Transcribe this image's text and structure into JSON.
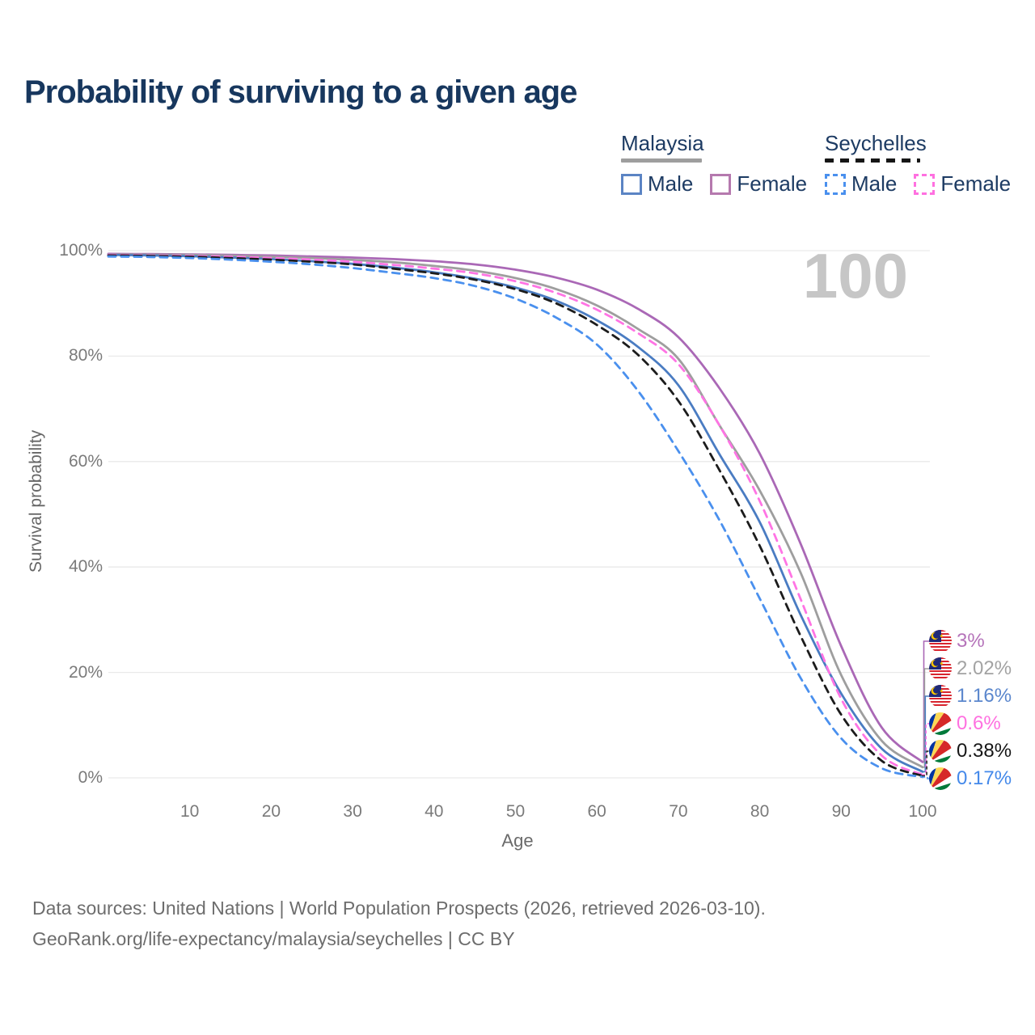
{
  "chart_data": {
    "type": "line",
    "title": "Probability of surviving to a given age",
    "xlabel": "Age",
    "ylabel": "Survival probability",
    "watermark": "100",
    "xlim": [
      0,
      100
    ],
    "ylim": [
      0,
      100
    ],
    "grid": "horizontal",
    "legend_position": "top-right",
    "x_ticks": [
      10,
      20,
      30,
      40,
      50,
      60,
      70,
      80,
      90,
      100
    ],
    "y_ticks": [
      0,
      20,
      40,
      60,
      80,
      100
    ],
    "y_tick_suffix": "%",
    "x": [
      0,
      5,
      10,
      15,
      20,
      25,
      30,
      35,
      40,
      45,
      50,
      55,
      60,
      65,
      70,
      75,
      80,
      85,
      90,
      95,
      100
    ],
    "series": [
      {
        "name": "Malaysia Female",
        "country": "Malaysia",
        "sex": "Female",
        "flag": "my",
        "style": "solid",
        "color": "#aa68b6",
        "end_label": "3%",
        "end_label_color": "#b573ba",
        "values": [
          99.4,
          99.35,
          99.3,
          99.2,
          99.1,
          98.9,
          98.7,
          98.4,
          98.0,
          97.4,
          96.4,
          94.9,
          92.6,
          89.0,
          83.6,
          74.0,
          61.5,
          44.5,
          25.0,
          9.5,
          3.0
        ]
      },
      {
        "name": "Malaysia",
        "country": "Malaysia",
        "sex": "",
        "flag": "my",
        "style": "solid",
        "color": "#9e9e9e",
        "end_label": "2.02%",
        "end_label_color": "#a3a3a3",
        "values": [
          99.3,
          99.25,
          99.2,
          99.05,
          98.85,
          98.6,
          98.25,
          97.8,
          97.1,
          96.2,
          94.8,
          92.7,
          89.6,
          85.2,
          79.5,
          67.0,
          54.5,
          39.0,
          19.5,
          7.0,
          2.02
        ]
      },
      {
        "name": "Malaysia Male",
        "country": "Malaysia",
        "sex": "Male",
        "flag": "my",
        "style": "solid",
        "color": "#4a7cc2",
        "end_label": "1.16%",
        "end_label_color": "#5b87cd",
        "values": [
          99.2,
          99.1,
          98.95,
          98.7,
          98.4,
          98.0,
          97.5,
          96.8,
          95.9,
          94.7,
          93.0,
          90.5,
          86.8,
          81.8,
          74.5,
          61.5,
          48.5,
          31.0,
          16.0,
          5.5,
          1.16
        ]
      },
      {
        "name": "Seychelles Female",
        "country": "Seychelles",
        "sex": "Female",
        "flag": "sc",
        "style": "dashed",
        "color": "#ff74e4",
        "end_label": "0.6%",
        "end_label_color": "#ff70e0",
        "values": [
          99.2,
          99.1,
          99.0,
          98.85,
          98.6,
          98.3,
          97.9,
          97.3,
          96.6,
          95.7,
          94.2,
          92.0,
          88.8,
          84.4,
          78.5,
          67.0,
          52.5,
          34.0,
          15.0,
          4.2,
          0.6
        ]
      },
      {
        "name": "Seychelles",
        "country": "Seychelles",
        "sex": "",
        "flag": "sc",
        "style": "dashed",
        "color": "#1c1c1c",
        "end_label": "0.38%",
        "end_label_color": "#161616",
        "values": [
          99.1,
          99.0,
          98.85,
          98.6,
          98.3,
          97.9,
          97.4,
          96.6,
          95.7,
          94.5,
          92.7,
          90.0,
          85.9,
          80.3,
          71.5,
          58.5,
          44.0,
          27.0,
          12.0,
          3.2,
          0.38
        ]
      },
      {
        "name": "Seychelles Male",
        "country": "Seychelles",
        "sex": "Male",
        "flag": "sc",
        "style": "dashed",
        "color": "#4a90ee",
        "end_label": "0.17%",
        "end_label_color": "#4489ea",
        "values": [
          98.9,
          98.8,
          98.6,
          98.3,
          97.9,
          97.4,
          96.7,
          95.8,
          94.8,
          93.3,
          90.9,
          87.3,
          82.2,
          73.5,
          62.0,
          49.0,
          34.0,
          19.0,
          7.5,
          1.8,
          0.17
        ]
      }
    ]
  },
  "legend": {
    "groups": [
      {
        "name": "Malaysia",
        "line_style": "solid",
        "underline_color": "#9e9e9e",
        "items": [
          {
            "label": "Male",
            "color": "#5b84c4"
          },
          {
            "label": "Female",
            "color": "#b579ae"
          }
        ]
      },
      {
        "name": "Seychelles",
        "line_style": "dashed",
        "underline_color": "#161616",
        "items": [
          {
            "label": "Male",
            "color": "#4a90ee"
          },
          {
            "label": "Female",
            "color": "#ff70e0"
          }
        ]
      }
    ]
  },
  "footer": {
    "line1": "Data sources: United Nations | World Population Prospects (2026, retrieved 2026-03-10).",
    "line2": "GeoRank.org/life-expectancy/malaysia/seychelles | CC BY"
  }
}
